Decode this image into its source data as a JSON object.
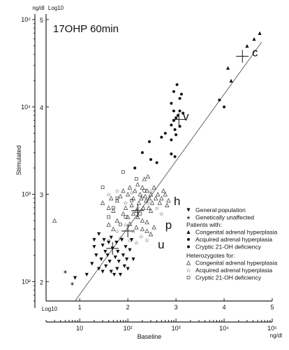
{
  "chart_data": {
    "type": "scatter",
    "title": "17OHP 60min",
    "xlabel": "Baseline",
    "ylabel": "Stimulated",
    "x_unit": "ng/dl",
    "y_unit": "ng/dl",
    "log_label": "Log10",
    "x_scale": "log",
    "y_scale": "log",
    "xlim": [
      2,
      100000
    ],
    "ylim": [
      60,
      100000
    ],
    "x_ticks": [
      {
        "value": 10,
        "label": "10"
      },
      {
        "value": 100,
        "label": "10²"
      },
      {
        "value": 1000,
        "label": "10³"
      },
      {
        "value": 10000,
        "label": "10⁴"
      },
      {
        "value": 100000,
        "label": "10⁵"
      }
    ],
    "x_log_ticks": [
      {
        "value": 10,
        "label": "1"
      },
      {
        "value": 100,
        "label": "2"
      },
      {
        "value": 1000,
        "label": "3"
      },
      {
        "value": 10000,
        "label": "4"
      },
      {
        "value": 100000,
        "label": "5"
      }
    ],
    "y_ticks": [
      {
        "value": 100,
        "label": "10²"
      },
      {
        "value": 1000,
        "label": "10³"
      },
      {
        "value": 10000,
        "label": "10⁴"
      },
      {
        "value": 100000,
        "label": "10⁵"
      }
    ],
    "y_log_ticks": [
      {
        "value": 100,
        "label": "2"
      },
      {
        "value": 1000,
        "label": "3"
      },
      {
        "value": 10000,
        "label": "4"
      },
      {
        "value": 100000,
        "label": "5"
      }
    ],
    "group_labels": [
      {
        "text": "c",
        "x": 38000,
        "y": 38000
      },
      {
        "text": "v",
        "x": 1400,
        "y": 7000
      },
      {
        "text": "h",
        "x": 900,
        "y": 750
      },
      {
        "text": "p",
        "x": 600,
        "y": 400
      },
      {
        "text": "u",
        "x": 420,
        "y": 240
      }
    ],
    "group_centers": [
      {
        "group": "c",
        "x": 24000,
        "y": 38000
      },
      {
        "group": "v",
        "x": 1150,
        "y": 7200
      },
      {
        "group": "h",
        "x": 160,
        "y": 650
      },
      {
        "group": "p",
        "x": 100,
        "y": 380
      },
      {
        "group": "u",
        "x": 48,
        "y": 240
      }
    ],
    "regression_line": [
      [
        8,
        60
      ],
      [
        60000,
        55000
      ]
    ],
    "legend": {
      "general_title": "",
      "entries": [
        {
          "symbol": "tri-down",
          "label": "General population"
        },
        {
          "symbol": "star",
          "label": "Genetically unaffected"
        }
      ],
      "patients_title": "Patients with:",
      "patients": [
        {
          "symbol": "tri-up",
          "label": "Congenital adrenal hyperplasia"
        },
        {
          "symbol": "dot",
          "label": "Acquired adrenal hyperplasia"
        },
        {
          "symbol": "dot",
          "label": "Cryptic 21-OH deficiency"
        }
      ],
      "heterozygotes_title": "Heterozygotes for:",
      "heterozygotes": [
        {
          "symbol": "tri-up-open",
          "label": "Congenital adrenal hyperplasia"
        },
        {
          "symbol": "star-open",
          "label": "Acquired adrenal hyperplasia"
        },
        {
          "symbol": "square-open",
          "label": "Cryptic 21-OH deficiency"
        }
      ]
    },
    "series": [
      {
        "name": "Congenital adrenal hyperplasia",
        "symbol": "tri-up",
        "points": [
          [
            42000,
            60000
          ],
          [
            55000,
            70000
          ],
          [
            30000,
            50000
          ],
          [
            14000,
            20000
          ],
          [
            12000,
            28000
          ]
        ]
      },
      {
        "name": "Cryptic 21-OH deficiency",
        "symbol": "dot",
        "points": [
          [
            1050,
            18000
          ],
          [
            900,
            15000
          ],
          [
            1200,
            12500
          ],
          [
            1300,
            14000
          ],
          [
            800,
            11000
          ],
          [
            900,
            9000
          ],
          [
            1200,
            9000
          ],
          [
            1400,
            8500
          ],
          [
            1100,
            8000
          ],
          [
            1000,
            7500
          ],
          [
            900,
            7000
          ],
          [
            800,
            6200
          ],
          [
            1200,
            6000
          ],
          [
            950,
            5500
          ],
          [
            500,
            4500
          ],
          [
            600,
            5000
          ],
          [
            800,
            4200
          ],
          [
            280,
            4000
          ],
          [
            200,
            3000
          ],
          [
            800,
            2900
          ],
          [
            950,
            2700
          ],
          [
            140,
            2000
          ],
          [
            400,
            2300
          ],
          [
            300,
            2500
          ],
          [
            1000,
            4800
          ],
          [
            8000,
            12000
          ],
          [
            10000,
            10000
          ]
        ]
      },
      {
        "name": "General population",
        "symbol": "tri-down",
        "points": [
          [
            8,
            110
          ],
          [
            14,
            120
          ],
          [
            18,
            160
          ],
          [
            20,
            250
          ],
          [
            20,
            300
          ],
          [
            22,
            200
          ],
          [
            25,
            140
          ],
          [
            25,
            350
          ],
          [
            28,
            180
          ],
          [
            30,
            130
          ],
          [
            30,
            260
          ],
          [
            32,
            300
          ],
          [
            34,
            220
          ],
          [
            35,
            150
          ],
          [
            38,
            200
          ],
          [
            40,
            280
          ],
          [
            42,
            170
          ],
          [
            45,
            130
          ],
          [
            45,
            320
          ],
          [
            48,
            240
          ],
          [
            52,
            120
          ],
          [
            55,
            190
          ],
          [
            58,
            280
          ],
          [
            60,
            140
          ],
          [
            62,
            220
          ],
          [
            65,
            170
          ],
          [
            70,
            120
          ],
          [
            75,
            300
          ],
          [
            80,
            200
          ],
          [
            85,
            150
          ],
          [
            90,
            250
          ],
          [
            95,
            180
          ],
          [
            100,
            140
          ],
          [
            110,
            230
          ],
          [
            120,
            300
          ],
          [
            130,
            180
          ]
        ]
      },
      {
        "name": "Genetically unaffected",
        "symbol": "star",
        "points": [
          [
            5,
            130
          ],
          [
            7,
            95
          ]
        ]
      },
      {
        "name": "Heterozygotes: Congenital adrenal hyperplasia",
        "symbol": "tri-up-open",
        "points": [
          [
            3,
            500
          ],
          [
            30,
            800
          ],
          [
            40,
            700
          ],
          [
            45,
            900
          ],
          [
            60,
            850
          ],
          [
            70,
            950
          ],
          [
            80,
            1100
          ],
          [
            90,
            700
          ],
          [
            100,
            1000
          ],
          [
            110,
            1200
          ],
          [
            120,
            750
          ],
          [
            130,
            900
          ],
          [
            140,
            1100
          ],
          [
            150,
            650
          ],
          [
            160,
            1300
          ],
          [
            170,
            800
          ],
          [
            180,
            1000
          ],
          [
            190,
            900
          ],
          [
            200,
            1200
          ],
          [
            210,
            700
          ],
          [
            220,
            1500
          ],
          [
            230,
            950
          ],
          [
            240,
            850
          ],
          [
            250,
            1100
          ],
          [
            260,
            1600
          ],
          [
            270,
            700
          ],
          [
            280,
            900
          ],
          [
            300,
            1000
          ],
          [
            320,
            800
          ],
          [
            350,
            1200
          ],
          [
            380,
            900
          ],
          [
            420,
            1000
          ],
          [
            460,
            800
          ],
          [
            500,
            900
          ],
          [
            550,
            1100
          ],
          [
            600,
            1000
          ],
          [
            650,
            750
          ],
          [
            700,
            850
          ],
          [
            130,
            600
          ],
          [
            160,
            550
          ],
          [
            200,
            500
          ],
          [
            250,
            480
          ],
          [
            300,
            650
          ],
          [
            100,
            550
          ],
          [
            80,
            600
          ],
          [
            60,
            500
          ],
          [
            50,
            650
          ],
          [
            110,
            460
          ],
          [
            200,
            400
          ],
          [
            250,
            380
          ],
          [
            300,
            350
          ],
          [
            350,
            420
          ],
          [
            150,
            420
          ],
          [
            50,
            400
          ],
          [
            40,
            450
          ]
        ]
      },
      {
        "name": "Heterozygotes: Acquired adrenal hyperplasia",
        "symbol": "star-open",
        "points": [
          [
            40,
            1000
          ],
          [
            60,
            1100
          ],
          [
            90,
            800
          ],
          [
            120,
            1050
          ],
          [
            160,
            700
          ],
          [
            200,
            950
          ],
          [
            260,
            800
          ],
          [
            300,
            1100
          ],
          [
            400,
            700
          ],
          [
            500,
            600
          ],
          [
            90,
            450
          ],
          [
            130,
            380
          ],
          [
            60,
            380
          ],
          [
            70,
            320
          ],
          [
            110,
            300
          ],
          [
            150,
            280
          ],
          [
            40,
            300
          ],
          [
            190,
            330
          ],
          [
            250,
            300
          ]
        ]
      },
      {
        "name": "Heterozygotes: Cryptic 21-OH deficiency",
        "symbol": "square-open",
        "points": [
          [
            80,
            1800
          ],
          [
            150,
            1500
          ],
          [
            30,
            1200
          ],
          [
            220,
            1100
          ],
          [
            60,
            900
          ],
          [
            120,
            850
          ],
          [
            50,
            700
          ],
          [
            90,
            550
          ],
          [
            180,
            600
          ],
          [
            40,
            550
          ],
          [
            70,
            450
          ]
        ]
      }
    ]
  }
}
